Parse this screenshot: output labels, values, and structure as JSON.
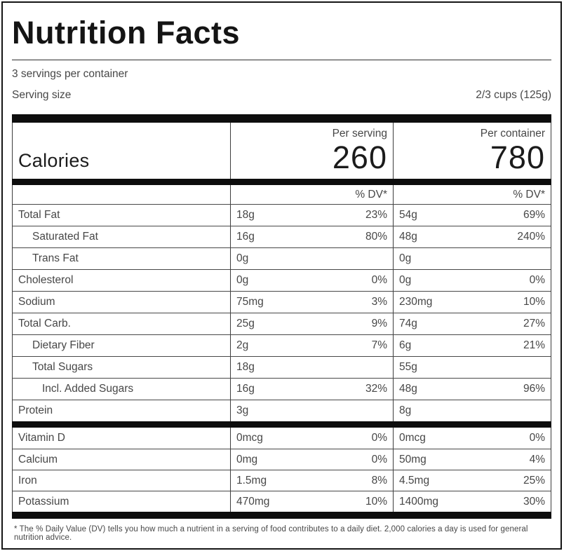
{
  "colors": {
    "background": "#ffffff",
    "text_gray": "#474747",
    "text_black": "#141414",
    "thin_rule": "#3d3d3d",
    "thick_bar": "#0d0d0d"
  },
  "header": {
    "title": "Nutrition Facts",
    "servings_per_container": "3 servings per container",
    "serving_size_label": "Serving size",
    "serving_size_value": "2/3 cups (125g)"
  },
  "calories": {
    "label": "Calories",
    "per_serving_label": "Per serving",
    "per_serving_value": "260",
    "per_container_label": "Per container",
    "per_container_value": "780"
  },
  "dv_header": {
    "per_serving": "% DV*",
    "per_container": "% DV*"
  },
  "nutrients": [
    {
      "name": "Total Fat",
      "indent": 0,
      "serving_amount": "18g",
      "serving_dv": "23%",
      "container_amount": "54g",
      "container_dv": "69%"
    },
    {
      "name": "Saturated Fat",
      "indent": 1,
      "serving_amount": "16g",
      "serving_dv": "80%",
      "container_amount": "48g",
      "container_dv": "240%"
    },
    {
      "name": "Trans Fat",
      "indent": 1,
      "serving_amount": "0g",
      "serving_dv": "",
      "container_amount": "0g",
      "container_dv": ""
    },
    {
      "name": "Cholesterol",
      "indent": 0,
      "serving_amount": "0g",
      "serving_dv": "0%",
      "container_amount": "0g",
      "container_dv": "0%"
    },
    {
      "name": "Sodium",
      "indent": 0,
      "serving_amount": "75mg",
      "serving_dv": "3%",
      "container_amount": "230mg",
      "container_dv": "10%"
    },
    {
      "name": "Total Carb.",
      "indent": 0,
      "serving_amount": "25g",
      "serving_dv": "9%",
      "container_amount": "74g",
      "container_dv": "27%"
    },
    {
      "name": "Dietary Fiber",
      "indent": 1,
      "serving_amount": "2g",
      "serving_dv": "7%",
      "container_amount": "6g",
      "container_dv": "21%"
    },
    {
      "name": "Total Sugars",
      "indent": 1,
      "serving_amount": "18g",
      "serving_dv": "",
      "container_amount": "55g",
      "container_dv": ""
    },
    {
      "name": "Incl. Added Sugars",
      "indent": 2,
      "serving_amount": "16g",
      "serving_dv": "32%",
      "container_amount": "48g",
      "container_dv": "96%"
    },
    {
      "name": "Protein",
      "indent": 0,
      "serving_amount": "3g",
      "serving_dv": "",
      "container_amount": "8g",
      "container_dv": ""
    }
  ],
  "micronutrients": [
    {
      "name": "Vitamin D",
      "indent": 0,
      "serving_amount": "0mcg",
      "serving_dv": "0%",
      "container_amount": "0mcg",
      "container_dv": "0%"
    },
    {
      "name": "Calcium",
      "indent": 0,
      "serving_amount": "0mg",
      "serving_dv": "0%",
      "container_amount": "50mg",
      "container_dv": "4%"
    },
    {
      "name": "Iron",
      "indent": 0,
      "serving_amount": "1.5mg",
      "serving_dv": "8%",
      "container_amount": "4.5mg",
      "container_dv": "25%"
    },
    {
      "name": "Potassium",
      "indent": 0,
      "serving_amount": "470mg",
      "serving_dv": "10%",
      "container_amount": "1400mg",
      "container_dv": "30%"
    }
  ],
  "footnote": "* The % Daily Value (DV) tells you how much a nutrient in a serving of food contributes to a daily diet. 2,000 calories a day is used for general nutrition advice."
}
